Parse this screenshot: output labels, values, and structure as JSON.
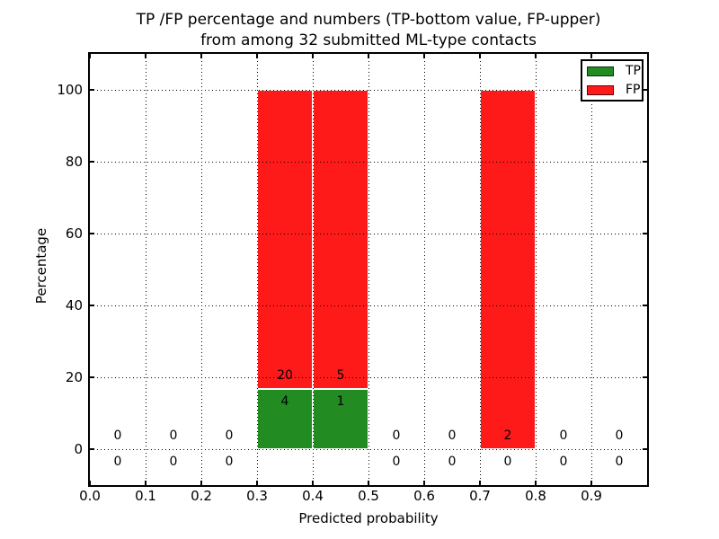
{
  "figure": {
    "background": "#ffffff",
    "title_line1": "TP /FP percentage and numbers (TP-bottom value, FP-upper)",
    "title_line2": "from among 32 submitted ML-type contacts"
  },
  "chart_data": {
    "type": "bar",
    "stacked": true,
    "title": "TP /FP percentage and numbers (TP-bottom value, FP-upper)\nfrom among 32 submitted ML-type contacts",
    "xlabel": "Predicted probability",
    "ylabel": "Percentage",
    "xlim": [
      0.0,
      1.0
    ],
    "ylim": [
      -10,
      110
    ],
    "x_ticks": [
      "0.0",
      "0.1",
      "0.2",
      "0.3",
      "0.4",
      "0.5",
      "0.6",
      "0.7",
      "0.8",
      "0.9"
    ],
    "y_ticks": [
      "0",
      "20",
      "40",
      "60",
      "80",
      "100"
    ],
    "grid": true,
    "grid_style": "dotted",
    "axisbelow": false,
    "total_contacts": 32,
    "bin_width": 0.1,
    "bin_starts": [
      0.0,
      0.1,
      0.2,
      0.3,
      0.4,
      0.5,
      0.6,
      0.7,
      0.8,
      0.9
    ],
    "series": [
      {
        "name": "TP",
        "color": "#228b22",
        "counts": [
          0,
          0,
          0,
          4,
          1,
          0,
          0,
          0,
          0,
          0
        ],
        "percent": [
          0,
          0,
          0,
          16.67,
          16.67,
          0,
          0,
          0,
          0,
          0
        ]
      },
      {
        "name": "FP",
        "color": "#ff1a1a",
        "counts": [
          0,
          0,
          0,
          20,
          5,
          0,
          0,
          2,
          0,
          0
        ],
        "percent": [
          0,
          0,
          0,
          83.33,
          83.33,
          0,
          0,
          100,
          0,
          0
        ]
      }
    ],
    "legend": {
      "position": "upper right",
      "entries": [
        {
          "label": "TP",
          "color": "#228b22"
        },
        {
          "label": "FP",
          "color": "#ff1a1a"
        }
      ]
    }
  }
}
